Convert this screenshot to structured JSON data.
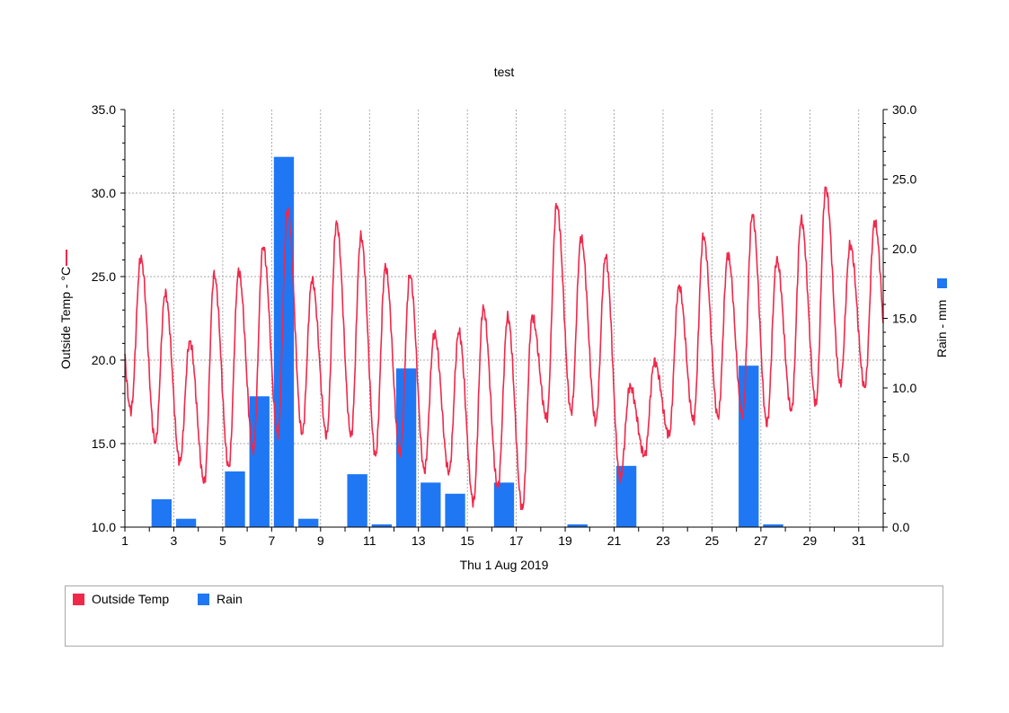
{
  "chart_data": {
    "type": "bar+line",
    "title": "test",
    "xlabel": "Thu 1 Aug 2019",
    "ylabel_left": "Outside Temp - °C",
    "ylabel_right": "Rain - mm",
    "x_tick_labels": [
      "1",
      "3",
      "5",
      "7",
      "9",
      "11",
      "13",
      "15",
      "17",
      "19",
      "21",
      "23",
      "25",
      "27",
      "29",
      "31"
    ],
    "xlim_days": [
      1,
      32
    ],
    "ylim_left": [
      10,
      35
    ],
    "ylim_right": [
      0,
      30
    ],
    "left_tick_labels": [
      "10.0",
      "15.0",
      "20.0",
      "25.0",
      "30.0",
      "35.0"
    ],
    "right_tick_labels": [
      "0.0",
      "5.0",
      "10.0",
      "15.0",
      "20.0",
      "25.0",
      "30.0"
    ],
    "grid": true,
    "legend_position": "bottom",
    "series": [
      {
        "name": "Outside Temp",
        "type": "line",
        "axis": "left",
        "color": "#f0284a",
        "daily_max": [
          26.1,
          24.0,
          21.1,
          25.1,
          25.3,
          26.8,
          29.0,
          24.8,
          28.2,
          27.4,
          25.6,
          25.1,
          21.6,
          21.7,
          23.1,
          22.6,
          22.6,
          29.3,
          27.3,
          26.2,
          18.4,
          19.9,
          24.4,
          27.4,
          26.3,
          28.7,
          26.0,
          28.4,
          30.3,
          26.9,
          28.3
        ],
        "daily_min": [
          17.0,
          15.1,
          13.9,
          12.7,
          13.6,
          14.6,
          15.5,
          15.6,
          15.5,
          15.5,
          14.3,
          14.4,
          13.4,
          13.3,
          11.5,
          12.4,
          11.1,
          16.5,
          16.9,
          16.3,
          12.9,
          14.3,
          15.5,
          16.4,
          16.6,
          16.7,
          16.2,
          17.0,
          17.4,
          18.6,
          18.4
        ]
      },
      {
        "name": "Rain",
        "type": "bar",
        "axis": "right",
        "color": "#1f77f4",
        "x": [
          2,
          3,
          5,
          6,
          7,
          8,
          10,
          11,
          12,
          13,
          14,
          16,
          19,
          21,
          26,
          27
        ],
        "values": [
          2.0,
          0.6,
          4.0,
          9.4,
          26.6,
          0.6,
          3.8,
          0.2,
          11.4,
          3.2,
          2.4,
          3.2,
          0.2,
          4.4,
          11.6,
          0.2
        ]
      }
    ]
  },
  "legend": [
    {
      "label": "Outside Temp",
      "color": "#f0284a"
    },
    {
      "label": "Rain",
      "color": "#1f77f4"
    }
  ]
}
